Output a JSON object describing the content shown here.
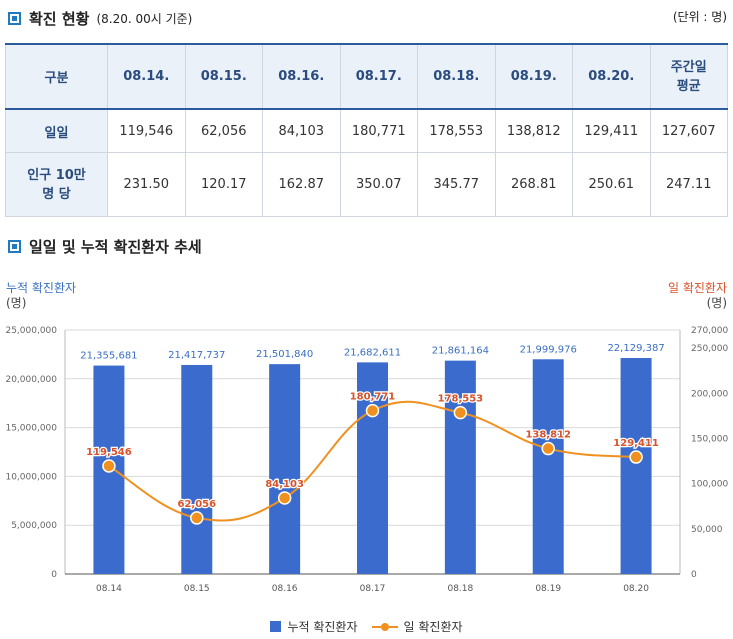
{
  "section1": {
    "title": "확진 현황",
    "subtitle": "(8.20. 00시 기준)",
    "unit": "(단위 : 명)"
  },
  "table": {
    "headers": [
      "구분",
      "08.14.",
      "08.15.",
      "08.16.",
      "08.17.",
      "08.18.",
      "08.19.",
      "08.20.",
      "주간일\n평균"
    ],
    "rows": [
      {
        "label": "일일",
        "values": [
          "119,546",
          "62,056",
          "84,103",
          "180,771",
          "178,553",
          "138,812",
          "129,411",
          "127,607"
        ]
      },
      {
        "label": "인구 10만\n명 당",
        "values": [
          "231.50",
          "120.17",
          "162.87",
          "350.07",
          "345.77",
          "268.81",
          "250.61",
          "247.11"
        ]
      }
    ]
  },
  "section2": {
    "title": "일일 및 누적 확진환자 추세"
  },
  "colors": {
    "bar": "#3b6ccd",
    "line": "#f0901e",
    "daily_label": "#d8522a",
    "cum_label": "#3a6fc3"
  },
  "chart_data": {
    "type": "bar",
    "categories": [
      "08.14",
      "08.15",
      "08.16",
      "08.17",
      "08.18",
      "08.19",
      "08.20"
    ],
    "series": [
      {
        "name": "누적 확진환자",
        "type": "bar",
        "axis": "left",
        "values": [
          21355681,
          21417737,
          21501840,
          21682611,
          21861164,
          21999976,
          22129387
        ],
        "labels": [
          "21,355,681",
          "21,417,737",
          "21,501,840",
          "21,682,611",
          "21,861,164",
          "21,999,976",
          "22,129,387"
        ]
      },
      {
        "name": "일 확진환자",
        "type": "line",
        "axis": "right",
        "values": [
          119546,
          62056,
          84103,
          180771,
          178553,
          138812,
          129411
        ],
        "labels": [
          "119,546",
          "62,056",
          "84,103",
          "180,771",
          "178,553",
          "138,812",
          "129,411"
        ]
      }
    ],
    "left_axis": {
      "title": "누적 확진환자",
      "unit": "(명)",
      "ylim": [
        0,
        25000000
      ],
      "ticks": [
        0,
        5000000,
        10000000,
        15000000,
        20000000,
        25000000
      ],
      "tick_labels": [
        "0",
        "5,000,000",
        "10,000,000",
        "15,000,000",
        "20,000,000",
        "25,000,000"
      ]
    },
    "right_axis": {
      "title": "일 확진환자",
      "unit": "(명)",
      "ylim": [
        0,
        270000
      ],
      "ticks": [
        0,
        50000,
        100000,
        150000,
        200000,
        250000,
        270000
      ],
      "tick_labels": [
        "0",
        "50,000",
        "100,000",
        "150,000",
        "200,000",
        "250,000",
        "270,000"
      ]
    },
    "legend": [
      "누적 확진환자",
      "일 확진환자"
    ],
    "legend_position": "bottom"
  }
}
